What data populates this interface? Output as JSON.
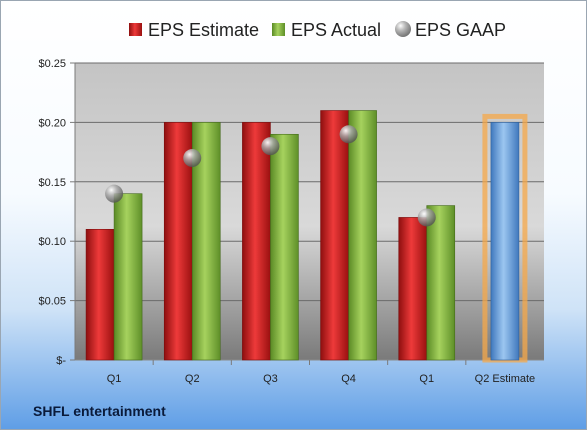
{
  "chart_data": {
    "type": "bar",
    "categories": [
      "Q1",
      "Q2",
      "Q3",
      "Q4",
      "Q1",
      "Q2 Estimate"
    ],
    "series": [
      {
        "name": "EPS Estimate",
        "values": [
          0.11,
          0.2,
          0.2,
          0.21,
          0.12,
          null
        ],
        "color": "#d42020"
      },
      {
        "name": "EPS Actual",
        "values": [
          0.14,
          0.2,
          0.19,
          0.21,
          0.13,
          0.2
        ],
        "color": "#7fb040",
        "highlight_last_color": "#6ea4dd"
      },
      {
        "name": "EPS GAAP",
        "values": [
          0.14,
          0.17,
          0.18,
          0.19,
          0.12,
          null
        ],
        "color": "#b8b8b8",
        "marker": "sphere"
      }
    ],
    "yticks": [
      "$-",
      "$0.05",
      "$0.10",
      "$0.15",
      "$0.20",
      "$0.25"
    ],
    "ylim": [
      0,
      0.25
    ],
    "grid": true,
    "legend": "top",
    "highlight_color": "#f6a84a"
  },
  "footer": {
    "company": "SHFL entertainment"
  }
}
